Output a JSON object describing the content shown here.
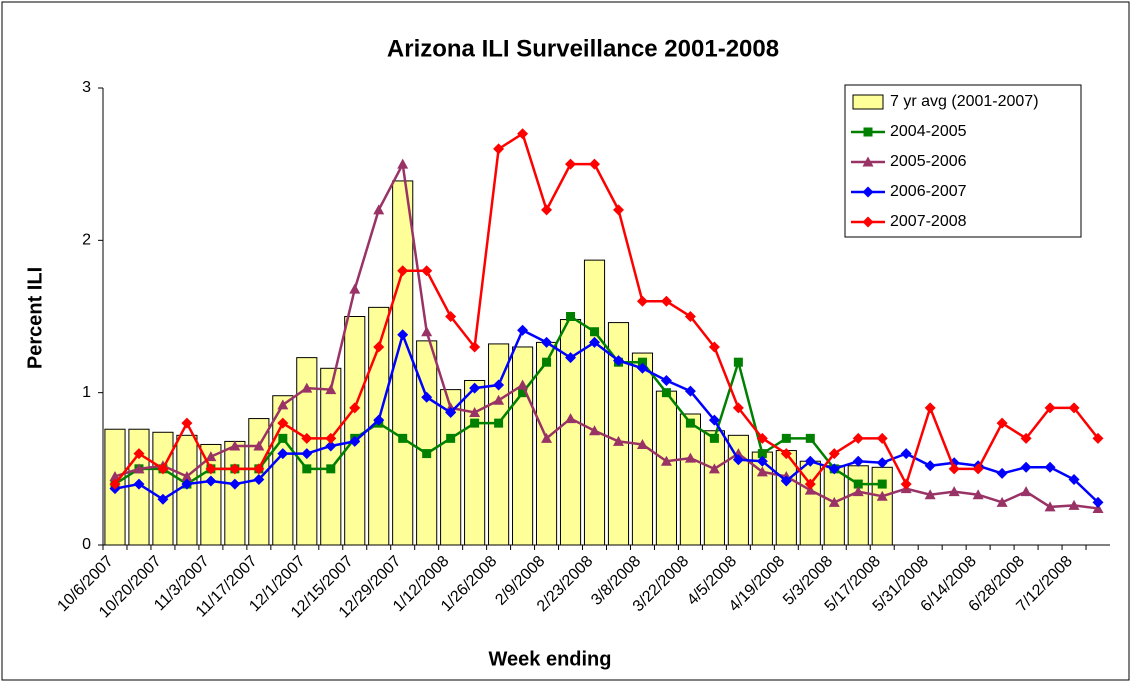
{
  "chart_data": {
    "type": "combo",
    "title": "Arizona ILI Surveillance 2001-2008",
    "x_label": "Week ending",
    "y_label": "Percent ILI",
    "categories": [
      "10/6/2007",
      null,
      "10/20/2007",
      null,
      "11/3/2007",
      null,
      "11/17/2007",
      null,
      "12/1/2007",
      null,
      "12/15/2007",
      null,
      "12/29/2007",
      null,
      "1/12/2008",
      null,
      "1/26/2008",
      null,
      "2/9/2008",
      null,
      "2/23/2008",
      null,
      "3/8/2008",
      null,
      "3/22/2008",
      null,
      "4/5/2008",
      null,
      "4/19/2008",
      null,
      "5/3/2008",
      null,
      "5/17/2008",
      null,
      "5/31/2008",
      null,
      "6/14/2008",
      null,
      "6/28/2008",
      null,
      "7/12/2008",
      null
    ],
    "ylim": [
      0,
      3
    ],
    "yticks": [
      0,
      1,
      2,
      3
    ],
    "legend": "top-right",
    "series": [
      {
        "name": "7 yr avg (2001-2007)",
        "type": "bar",
        "color": "#ffff99",
        "values": [
          0.76,
          0.76,
          0.74,
          0.72,
          0.66,
          0.68,
          0.83,
          0.98,
          1.23,
          1.16,
          1.5,
          1.56,
          2.39,
          1.34,
          1.02,
          1.08,
          1.32,
          1.3,
          1.33,
          1.48,
          1.87,
          1.46,
          1.26,
          1.01,
          0.86,
          0.75,
          0.72,
          0.61,
          0.62,
          0.55,
          0.52,
          0.52,
          0.51,
          null,
          null,
          null,
          null,
          null,
          null,
          null,
          null,
          null
        ]
      },
      {
        "name": "2004-2005",
        "type": "line",
        "marker": "square",
        "color": "#008000",
        "values": [
          0.4,
          0.5,
          0.5,
          0.4,
          0.5,
          0.5,
          0.5,
          0.7,
          0.5,
          0.5,
          0.7,
          0.8,
          0.7,
          0.6,
          0.7,
          0.8,
          0.8,
          1.0,
          1.2,
          1.5,
          1.4,
          1.2,
          1.2,
          1.0,
          0.8,
          0.7,
          1.2,
          0.6,
          0.7,
          0.7,
          0.5,
          0.4,
          0.4,
          null,
          null,
          null,
          null,
          null,
          null,
          null,
          null,
          null
        ]
      },
      {
        "name": "2005-2006",
        "type": "line",
        "marker": "triangle",
        "color": "#993366",
        "values": [
          0.45,
          0.5,
          0.52,
          0.45,
          0.58,
          0.65,
          0.65,
          0.92,
          1.03,
          1.02,
          1.68,
          2.2,
          2.5,
          1.4,
          0.9,
          0.87,
          0.95,
          1.05,
          0.7,
          0.83,
          0.75,
          0.68,
          0.66,
          0.55,
          0.57,
          0.5,
          0.6,
          0.48,
          0.45,
          0.36,
          0.28,
          0.35,
          0.32,
          0.37,
          0.33,
          0.35,
          0.33,
          0.28,
          0.35,
          0.25,
          0.26,
          0.24
        ]
      },
      {
        "name": "2006-2007",
        "type": "line",
        "marker": "diamond",
        "color": "#0000ff",
        "values": [
          0.37,
          0.4,
          0.3,
          0.4,
          0.42,
          0.4,
          0.43,
          0.6,
          0.6,
          0.65,
          0.68,
          0.82,
          1.38,
          0.97,
          0.87,
          1.03,
          1.05,
          1.41,
          1.33,
          1.23,
          1.33,
          1.21,
          1.16,
          1.08,
          1.01,
          0.82,
          0.56,
          0.55,
          0.42,
          0.55,
          0.5,
          0.55,
          0.54,
          0.6,
          0.52,
          0.54,
          0.52,
          0.47,
          0.51,
          0.51,
          0.43,
          0.28
        ]
      },
      {
        "name": "2007-2008",
        "type": "line",
        "marker": "diamond",
        "color": "#ff0000",
        "values": [
          0.4,
          0.6,
          0.5,
          0.8,
          0.5,
          0.5,
          0.5,
          0.8,
          0.7,
          0.7,
          0.9,
          1.3,
          1.8,
          1.8,
          1.5,
          1.3,
          2.6,
          2.7,
          2.2,
          2.5,
          2.5,
          2.2,
          1.6,
          1.6,
          1.5,
          1.3,
          0.9,
          0.7,
          0.6,
          0.4,
          0.6,
          0.7,
          0.7,
          0.4,
          0.9,
          0.5,
          0.5,
          0.8,
          0.7,
          0.9,
          0.9,
          0.7
        ]
      }
    ]
  }
}
